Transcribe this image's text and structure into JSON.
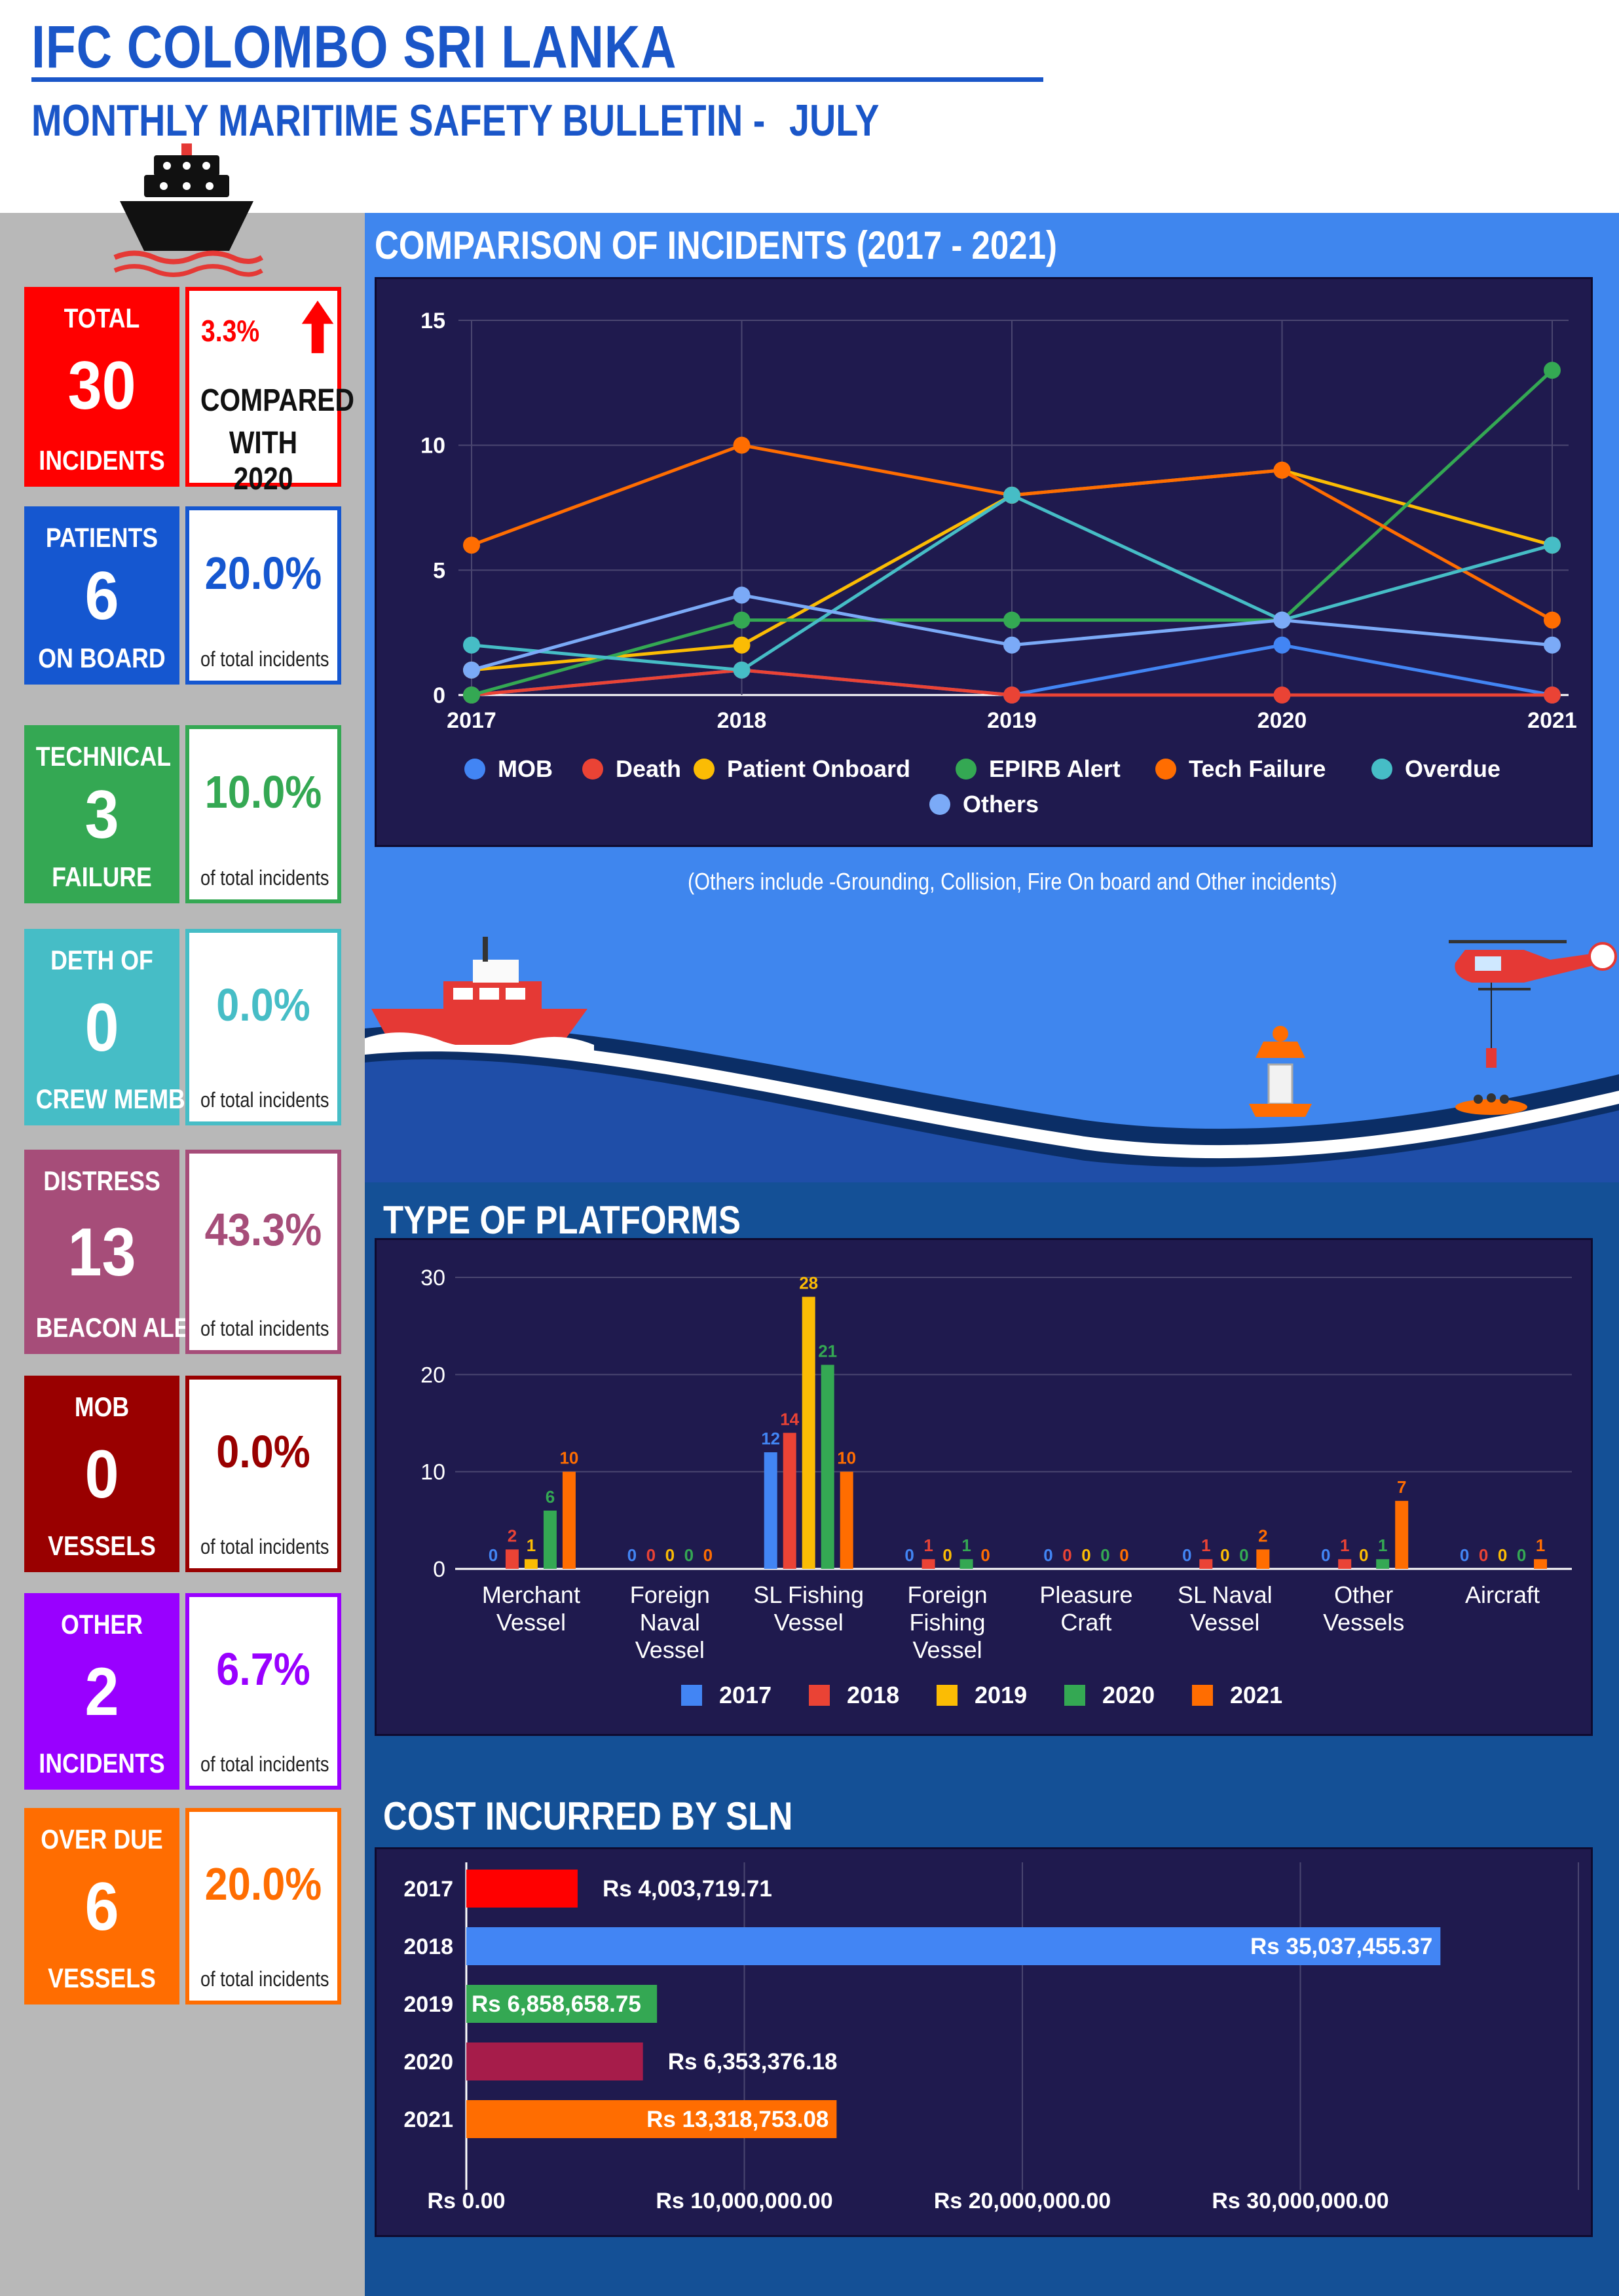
{
  "header": {
    "title": "IFC COLOMBO SRI LANKA",
    "subtitle": "MONTHLY MARITIME SAFETY BULLETIN -",
    "month": "JULY"
  },
  "summary": {
    "label_top": "TOTAL",
    "value": "30",
    "label_bottom": "INCIDENTS",
    "change_pct": "3.3%",
    "change_line1": "COMPARED",
    "change_line2": "WITH 2020",
    "color": "#ff0000"
  },
  "stats": [
    {
      "top": "PATIENTS",
      "value": "6",
      "bottom": "ON BOARD",
      "pct": "20.0%",
      "caption": "of total incidents",
      "color": "#1557d0"
    },
    {
      "top": "TECHNICAL",
      "value": "3",
      "bottom": "FAILURE",
      "pct": "10.0%",
      "caption": "of total incidents",
      "color": "#34a853"
    },
    {
      "top": "DETH OF",
      "value": "0",
      "bottom": "CREW MEMBER",
      "pct": "0.0%",
      "caption": "of total incidents",
      "color": "#46bdc6"
    },
    {
      "top": "DISTRESS",
      "value": "13",
      "bottom": "BEACON ALERT",
      "pct": "43.3%",
      "caption": "of total incidents",
      "color": "#a64d79"
    },
    {
      "top": "MOB",
      "value": "0",
      "bottom": "VESSELS",
      "pct": "0.0%",
      "caption": "of total incidents",
      "color": "#990000"
    },
    {
      "top": "OTHER",
      "value": "2",
      "bottom": "INCIDENTS",
      "pct": "6.7%",
      "caption": "of total incidents",
      "color": "#9900ff"
    },
    {
      "top": "OVER DUE",
      "value": "6",
      "bottom": "VESSELS",
      "pct": "20.0%",
      "caption": "of total incidents",
      "color": "#ff6d01"
    }
  ],
  "line_section": {
    "title": "COMPARISON OF INCIDENTS (2017 - 2021)",
    "note": "(Others include -Grounding, Collision, Fire On board and Other incidents)"
  },
  "bar_section": {
    "title": "TYPE OF PLATFORMS"
  },
  "cost_section": {
    "title": "COST INCURRED BY SLN"
  },
  "chart_data": [
    {
      "type": "line",
      "x": [
        "2017",
        "2018",
        "2019",
        "2020",
        "2021"
      ],
      "ylim": [
        0,
        15
      ],
      "yticks": [
        "0",
        "5",
        "10",
        "15"
      ],
      "series": [
        {
          "name": "MOB",
          "color": "#4285f4",
          "values": [
            0,
            1,
            0,
            2,
            0
          ]
        },
        {
          "name": "Death",
          "color": "#ea4335",
          "values": [
            0,
            1,
            0,
            0,
            0
          ]
        },
        {
          "name": "Patient Onboard",
          "color": "#fbbc04",
          "values": [
            1,
            2,
            8,
            9,
            6
          ]
        },
        {
          "name": "EPIRB Alert",
          "color": "#34a853",
          "values": [
            0,
            3,
            3,
            3,
            13
          ]
        },
        {
          "name": "Tech Failure",
          "color": "#ff6d01",
          "values": [
            6,
            10,
            8,
            9,
            3
          ]
        },
        {
          "name": "Overdue",
          "color": "#46bdc6",
          "values": [
            2,
            1,
            8,
            3,
            6
          ]
        },
        {
          "name": "Others",
          "color": "#7baaf7",
          "values": [
            1,
            4,
            2,
            3,
            2
          ]
        }
      ]
    },
    {
      "type": "bar",
      "categories": [
        [
          "Merchant",
          "Vessel"
        ],
        [
          "Foreign",
          "Naval",
          "Vessel"
        ],
        [
          "SL Fishing",
          "Vessel"
        ],
        [
          "Foreign",
          "Fishing",
          "Vessel"
        ],
        [
          "Pleasure",
          "Craft"
        ],
        [
          "SL Naval",
          "Vessel"
        ],
        [
          "Other",
          "Vessels"
        ],
        [
          "Aircraft"
        ]
      ],
      "ylim": [
        0,
        30
      ],
      "yticks": [
        "0",
        "10",
        "20",
        "30"
      ],
      "series": [
        {
          "name": "2017",
          "color": "#4285f4",
          "values": [
            0,
            0,
            12,
            0,
            0,
            0,
            0,
            0
          ]
        },
        {
          "name": "2018",
          "color": "#ea4335",
          "values": [
            2,
            0,
            14,
            1,
            0,
            1,
            1,
            0
          ]
        },
        {
          "name": "2019",
          "color": "#fbbc04",
          "values": [
            1,
            0,
            28,
            0,
            0,
            0,
            0,
            0
          ]
        },
        {
          "name": "2020",
          "color": "#34a853",
          "values": [
            6,
            0,
            21,
            1,
            0,
            0,
            1,
            0
          ]
        },
        {
          "name": "2021",
          "color": "#ff6d01",
          "values": [
            10,
            0,
            10,
            0,
            0,
            2,
            7,
            1
          ]
        }
      ]
    },
    {
      "type": "bar",
      "orientation": "horizontal",
      "categories": [
        "2017",
        "2018",
        "2019",
        "2020",
        "2021"
      ],
      "values": [
        4003719.71,
        35037455.37,
        6858658.75,
        6353376.18,
        13318753.08
      ],
      "labels": [
        "Rs 4,003,719.71",
        "Rs 35,037,455.37",
        "Rs 6,858,658.75",
        "Rs 6,353,376.18",
        "Rs 13,318,753.08"
      ],
      "colors": [
        "#ff0000",
        "#4285f4",
        "#34a853",
        "#a61c4a",
        "#ff6d01"
      ],
      "xlim": [
        0,
        40000000
      ],
      "xticks": [
        "Rs 0.00",
        "Rs 10,000,000.00",
        "Rs 20,000,000.00",
        "Rs 30,000,000.00"
      ]
    }
  ]
}
